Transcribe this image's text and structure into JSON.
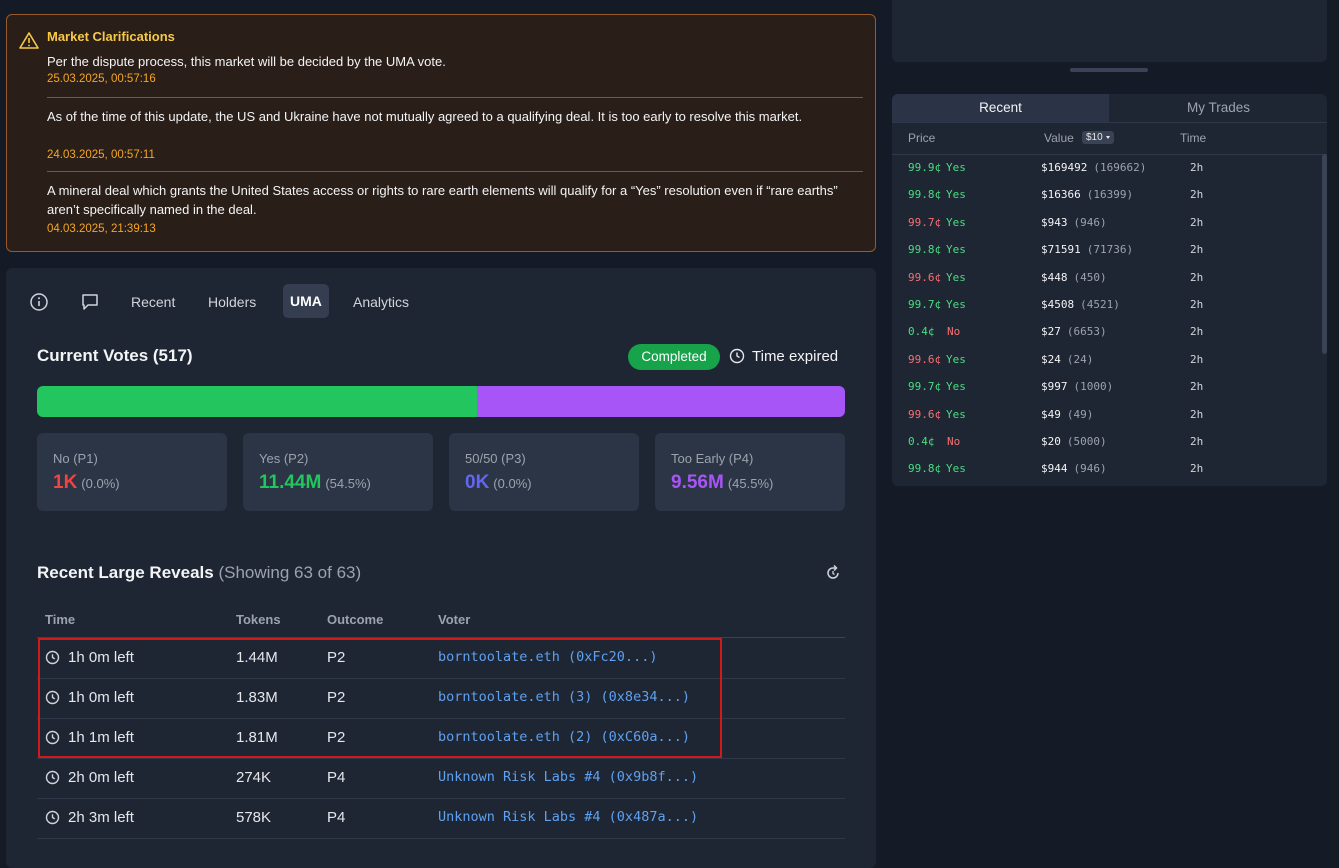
{
  "clarifications": {
    "title": "Market Clarifications",
    "items": [
      {
        "text": "Per the dispute process, this market will be decided by the UMA vote.",
        "date": "25.03.2025, 00:57:16"
      },
      {
        "text": "As of the time of this update, the US and Ukraine have not mutually agreed to a qualifying deal. It is too early to resolve this market.",
        "date": "24.03.2025, 00:57:11"
      },
      {
        "text": "A mineral deal which grants the United States access or rights to rare earth elements will qualify for a “Yes” resolution even if “rare earths” aren’t specifically named in the deal.",
        "date": "04.03.2025, 21:39:13"
      }
    ]
  },
  "tabs": {
    "items": [
      "Recent",
      "Holders",
      "UMA",
      "Analytics"
    ],
    "active": 2
  },
  "votes": {
    "title": "Current Votes (517)",
    "status": "Completed",
    "time_status": "Time expired",
    "options": [
      {
        "label": "No (P1)",
        "amount": "1K",
        "share": 0.0,
        "share_label": "(0.0%)",
        "color": "#ef4444"
      },
      {
        "label": "Yes (P2)",
        "amount": "11.44M",
        "share": 54.5,
        "share_label": "(54.5%)",
        "color": "#22c55e"
      },
      {
        "label": "50/50 (P3)",
        "amount": "0K",
        "share": 0.0,
        "share_label": "(0.0%)",
        "color": "#6366f1"
      },
      {
        "label": "Too Early (P4)",
        "amount": "9.56M",
        "share": 45.5,
        "share_label": "(45.5%)",
        "color": "#a855f7"
      }
    ]
  },
  "reveals": {
    "title": "Recent Large Reveals",
    "subtitle": "(Showing 63 of 63)",
    "columns": [
      "Time",
      "Tokens",
      "Outcome",
      "Voter"
    ],
    "rows": [
      {
        "time": "1h 0m left",
        "tokens": "1.44M",
        "outcome": "P2",
        "voter": "borntoolate.eth (0xFc20...)",
        "highlight": true
      },
      {
        "time": "1h 0m left",
        "tokens": "1.83M",
        "outcome": "P2",
        "voter": "borntoolate.eth (3) (0x8e34...)",
        "highlight": true
      },
      {
        "time": "1h 1m left",
        "tokens": "1.81M",
        "outcome": "P2",
        "voter": "borntoolate.eth (2) (0xC60a...)",
        "highlight": true
      },
      {
        "time": "2h 0m left",
        "tokens": "274K",
        "outcome": "P4",
        "voter": "Unknown Risk Labs #4 (0x9b8f...)",
        "highlight": false
      },
      {
        "time": "2h 3m left",
        "tokens": "578K",
        "outcome": "P4",
        "voter": "Unknown Risk Labs #4 (0x487a...)",
        "highlight": false
      }
    ]
  },
  "trades": {
    "tabs": [
      "Recent",
      "My Trades"
    ],
    "active": 0,
    "columns": [
      "Price",
      "Value",
      "Time"
    ],
    "filter": "$10",
    "rows": [
      {
        "price": "99.9¢",
        "side": "Yes",
        "value": "$169492",
        "raw": "(169662)",
        "time": "2h",
        "price_color": "#4ade80"
      },
      {
        "price": "99.8¢",
        "side": "Yes",
        "value": "$16366",
        "raw": "(16399)",
        "time": "2h",
        "price_color": "#4ade80"
      },
      {
        "price": "99.7¢",
        "side": "Yes",
        "value": "$943",
        "raw": "(946)",
        "time": "2h",
        "price_color": "#f87171"
      },
      {
        "price": "99.8¢",
        "side": "Yes",
        "value": "$71591",
        "raw": "(71736)",
        "time": "2h",
        "price_color": "#4ade80"
      },
      {
        "price": "99.6¢",
        "side": "Yes",
        "value": "$448",
        "raw": "(450)",
        "time": "2h",
        "price_color": "#f87171"
      },
      {
        "price": "99.7¢",
        "side": "Yes",
        "value": "$4508",
        "raw": "(4521)",
        "time": "2h",
        "price_color": "#4ade80"
      },
      {
        "price": "0.4¢",
        "side": "No",
        "value": "$27",
        "raw": "(6653)",
        "time": "2h",
        "price_color": "#4ade80"
      },
      {
        "price": "99.6¢",
        "side": "Yes",
        "value": "$24",
        "raw": "(24)",
        "time": "2h",
        "price_color": "#f87171"
      },
      {
        "price": "99.7¢",
        "side": "Yes",
        "value": "$997",
        "raw": "(1000)",
        "time": "2h",
        "price_color": "#4ade80"
      },
      {
        "price": "99.6¢",
        "side": "Yes",
        "value": "$49",
        "raw": "(49)",
        "time": "2h",
        "price_color": "#f87171"
      },
      {
        "price": "0.4¢",
        "side": "No",
        "value": "$20",
        "raw": "(5000)",
        "time": "2h",
        "price_color": "#4ade80"
      },
      {
        "price": "99.8¢",
        "side": "Yes",
        "value": "$944",
        "raw": "(946)",
        "time": "2h",
        "price_color": "#4ade80"
      }
    ]
  }
}
